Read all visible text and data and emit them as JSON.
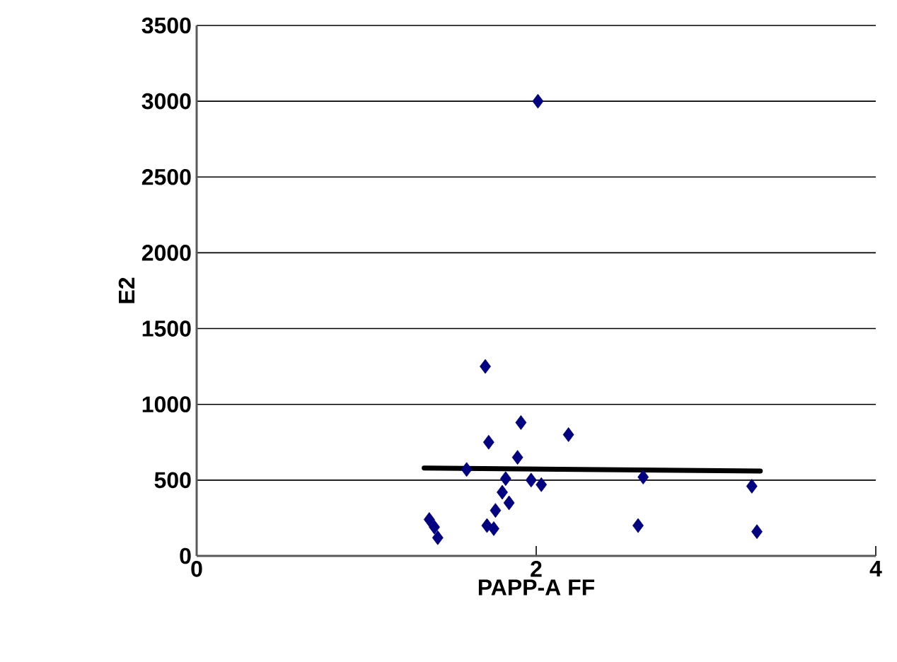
{
  "chart_data": {
    "type": "scatter",
    "xlabel": "PAPP-A FF",
    "ylabel": "E2",
    "xlim": [
      0,
      4
    ],
    "xticks": [
      0,
      2,
      4
    ],
    "ylim": [
      0,
      3500
    ],
    "yticks": [
      0,
      500,
      1000,
      1500,
      2000,
      2500,
      3000,
      3500
    ],
    "grid": "y",
    "marker": "diamond",
    "series": [
      {
        "color": "#000080",
        "x": [
          2.01,
          1.7,
          1.91,
          2.19,
          1.72,
          1.89,
          1.59,
          1.82,
          1.97,
          2.03,
          2.63,
          3.27,
          1.8,
          1.84,
          1.76,
          1.71,
          1.75,
          2.6,
          3.3,
          1.37,
          1.4,
          1.42
        ],
        "values": [
          3000,
          1250,
          880,
          800,
          750,
          650,
          570,
          510,
          500,
          470,
          520,
          460,
          420,
          350,
          300,
          200,
          180,
          200,
          160,
          240,
          190,
          120
        ]
      },
      {
        "type": "line",
        "color": "#000000",
        "marker": "none",
        "x": [
          1.34,
          3.32
        ],
        "values": [
          580,
          560
        ]
      }
    ]
  }
}
